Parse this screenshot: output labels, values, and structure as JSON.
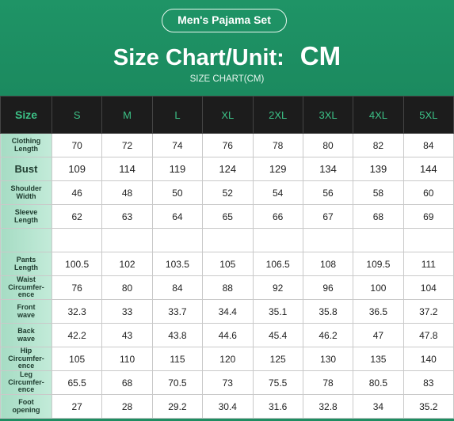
{
  "header": {
    "badge": "Men's Pajama Set",
    "title": "Size Chart/Unit:",
    "unit": "CM",
    "subtitle": "SIZE CHART(CM)"
  },
  "table": {
    "columns": [
      "Size",
      "S",
      "M",
      "L",
      "XL",
      "2XL",
      "3XL",
      "4XL",
      "5XL"
    ],
    "sections": [
      {
        "rows": [
          {
            "label": "Clothing\nLength",
            "values": [
              70,
              72,
              74,
              76,
              78,
              80,
              82,
              84
            ]
          },
          {
            "label": "Bust",
            "values": [
              109,
              114,
              119,
              124,
              129,
              134,
              139,
              144
            ]
          },
          {
            "label": "Shoulder\nWidth",
            "values": [
              46,
              48,
              50,
              52,
              54,
              56,
              58,
              60
            ]
          },
          {
            "label": "Sleeve\nLength",
            "values": [
              62,
              63,
              64,
              65,
              66,
              67,
              68,
              69
            ]
          }
        ]
      },
      {
        "rows": [
          {
            "label": "Pants\nLength",
            "values": [
              100.5,
              102,
              103.5,
              105,
              106.5,
              108,
              109.5,
              111
            ]
          },
          {
            "label": "Waist\nCircumfer-\nence",
            "values": [
              76,
              80,
              84,
              88,
              92,
              96,
              100,
              104
            ]
          },
          {
            "label": "Front\nwave",
            "values": [
              32.3,
              33,
              33.7,
              34.4,
              35.1,
              35.8,
              36.5,
              37.2
            ]
          },
          {
            "label": "Back\nwave",
            "values": [
              42.2,
              43,
              43.8,
              44.6,
              45.4,
              46.2,
              47,
              47.8
            ]
          },
          {
            "label": "Hip\nCircumfer-\nence",
            "values": [
              105,
              110,
              115,
              120,
              125,
              130,
              135,
              140
            ]
          },
          {
            "label": "Leg\nCircumfer-\nence",
            "values": [
              65.5,
              68,
              70.5,
              73,
              75.5,
              78,
              80.5,
              83
            ]
          },
          {
            "label": "Foot\nopening",
            "values": [
              27,
              28,
              29.2,
              30.4,
              31.6,
              32.8,
              34,
              35.2
            ]
          }
        ]
      }
    ]
  }
}
